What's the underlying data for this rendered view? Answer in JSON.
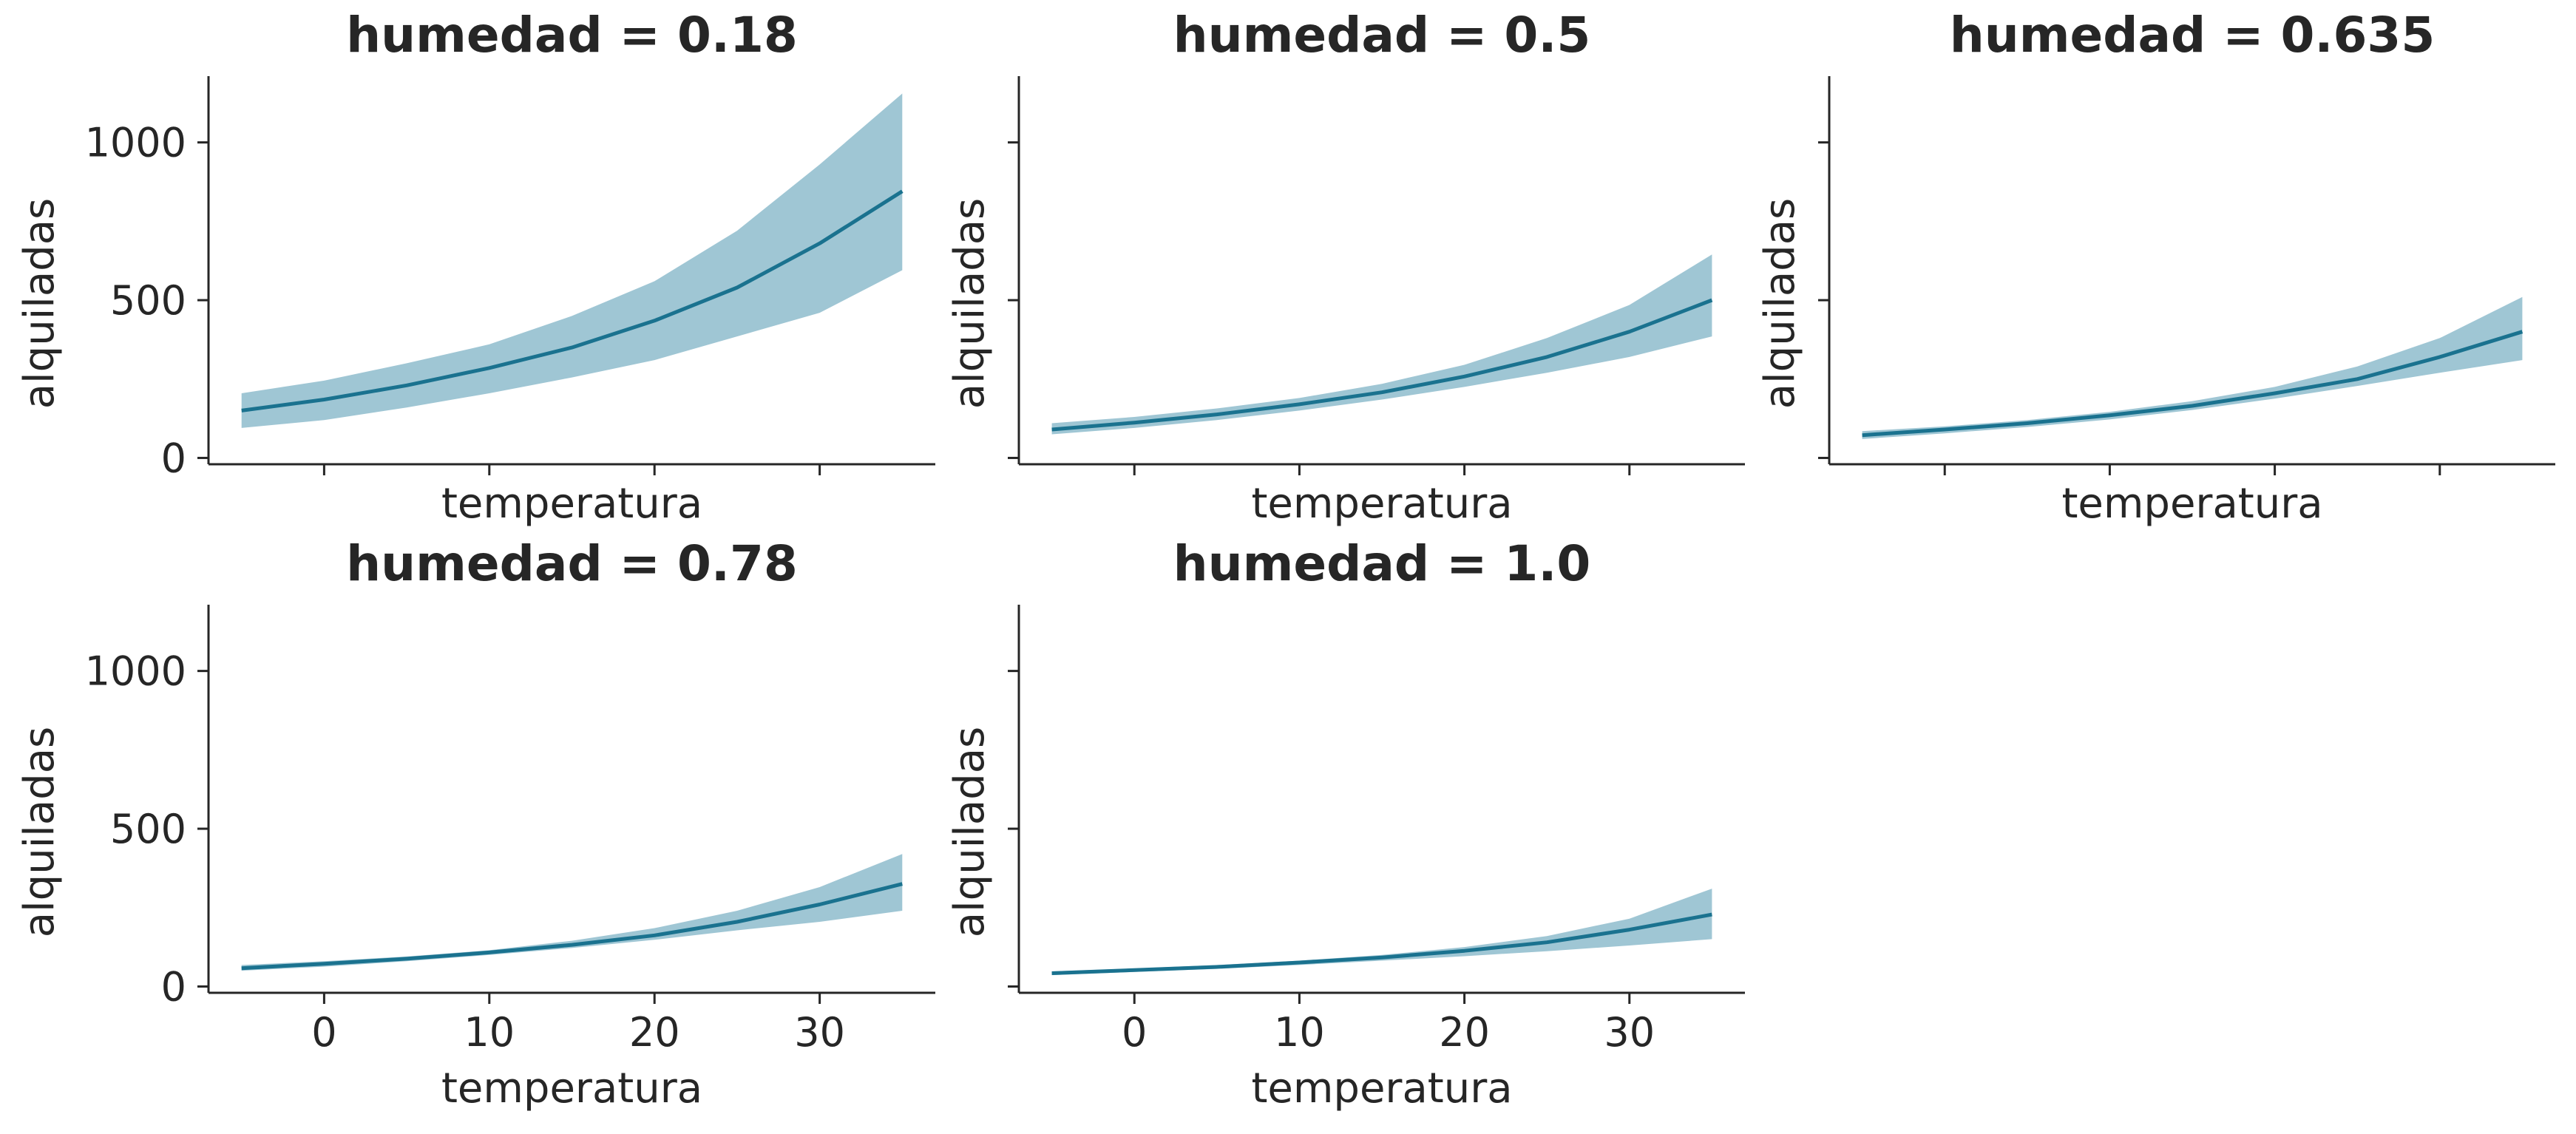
{
  "colors": {
    "line": "#1a728f",
    "band": "#9fc6d4",
    "text": "#262626",
    "axis": "#262626"
  },
  "chart_data": [
    {
      "type": "line",
      "title": "humedad = 0.18",
      "xlabel": "temperatura",
      "ylabel": "alquiladas",
      "x": [
        -5,
        0,
        5,
        10,
        15,
        20,
        25,
        30,
        35
      ],
      "series": [
        {
          "values": [
            150,
            185,
            230,
            285,
            350,
            435,
            540,
            680,
            845
          ]
        }
      ],
      "band_upper": [
        205,
        245,
        300,
        360,
        450,
        560,
        720,
        930,
        1155
      ],
      "band_lower": [
        95,
        120,
        160,
        205,
        255,
        310,
        385,
        460,
        595
      ],
      "xlim": [
        -7,
        37
      ],
      "ylim": [
        -20,
        1210
      ],
      "xticks": [
        0,
        10,
        20,
        30
      ],
      "yticks": [
        0,
        500,
        1000
      ],
      "show_xticklabels": false,
      "show_yticklabels": true
    },
    {
      "type": "line",
      "title": "humedad = 0.5",
      "xlabel": "temperatura",
      "ylabel": "alquiladas",
      "x": [
        -5,
        0,
        5,
        10,
        15,
        20,
        25,
        30,
        35
      ],
      "series": [
        {
          "values": [
            90,
            112,
            138,
            170,
            208,
            258,
            320,
            400,
            500
          ]
        }
      ],
      "band_upper": [
        110,
        130,
        157,
        190,
        235,
        295,
        380,
        485,
        645
      ],
      "band_lower": [
        75,
        95,
        120,
        150,
        185,
        225,
        270,
        320,
        385
      ],
      "xlim": [
        -7,
        37
      ],
      "ylim": [
        -20,
        1210
      ],
      "xticks": [
        0,
        10,
        20,
        30
      ],
      "yticks": [
        0,
        500,
        1000
      ],
      "show_xticklabels": false,
      "show_yticklabels": false
    },
    {
      "type": "line",
      "title": "humedad = 0.635",
      "xlabel": "temperatura",
      "ylabel": "alquiladas",
      "x": [
        -5,
        0,
        5,
        10,
        15,
        20,
        25,
        30,
        35
      ],
      "series": [
        {
          "values": [
            72,
            90,
            110,
            135,
            165,
            205,
            250,
            320,
            400
          ]
        }
      ],
      "band_upper": [
        85,
        100,
        120,
        146,
        180,
        225,
        290,
        380,
        510
      ],
      "band_lower": [
        60,
        78,
        98,
        122,
        152,
        188,
        228,
        270,
        310
      ],
      "xlim": [
        -7,
        37
      ],
      "ylim": [
        -20,
        1210
      ],
      "xticks": [
        0,
        10,
        20,
        30
      ],
      "yticks": [
        0,
        500,
        1000
      ],
      "show_xticklabels": false,
      "show_yticklabels": false
    },
    {
      "type": "line",
      "title": "humedad = 0.78",
      "xlabel": "temperatura",
      "ylabel": "alquiladas",
      "x": [
        -5,
        0,
        5,
        10,
        15,
        20,
        25,
        30,
        35
      ],
      "series": [
        {
          "values": [
            58,
            72,
            88,
            108,
            132,
            162,
            205,
            260,
            325
          ]
        }
      ],
      "band_upper": [
        68,
        80,
        95,
        115,
        145,
        185,
        240,
        315,
        420
      ],
      "band_lower": [
        50,
        63,
        80,
        100,
        122,
        148,
        178,
        205,
        240
      ],
      "xlim": [
        -7,
        37
      ],
      "ylim": [
        -20,
        1210
      ],
      "xticks": [
        0,
        10,
        20,
        30
      ],
      "yticks": [
        0,
        500,
        1000
      ],
      "show_xticklabels": true,
      "show_yticklabels": true
    },
    {
      "type": "line",
      "title": "humedad = 1.0",
      "xlabel": "temperatura",
      "ylabel": "alquiladas",
      "x": [
        -5,
        0,
        5,
        10,
        15,
        20,
        25,
        30,
        35
      ],
      "series": [
        {
          "values": [
            42,
            52,
            62,
            76,
            92,
            113,
            140,
            180,
            228
          ]
        }
      ],
      "band_upper": [
        48,
        57,
        68,
        82,
        100,
        125,
        160,
        215,
        310
      ],
      "band_lower": [
        36,
        46,
        56,
        68,
        82,
        96,
        112,
        130,
        150
      ],
      "xlim": [
        -7,
        37
      ],
      "ylim": [
        -20,
        1210
      ],
      "xticks": [
        0,
        10,
        20,
        30
      ],
      "yticks": [
        0,
        500,
        1000
      ],
      "show_xticklabels": true,
      "show_yticklabels": false
    }
  ]
}
